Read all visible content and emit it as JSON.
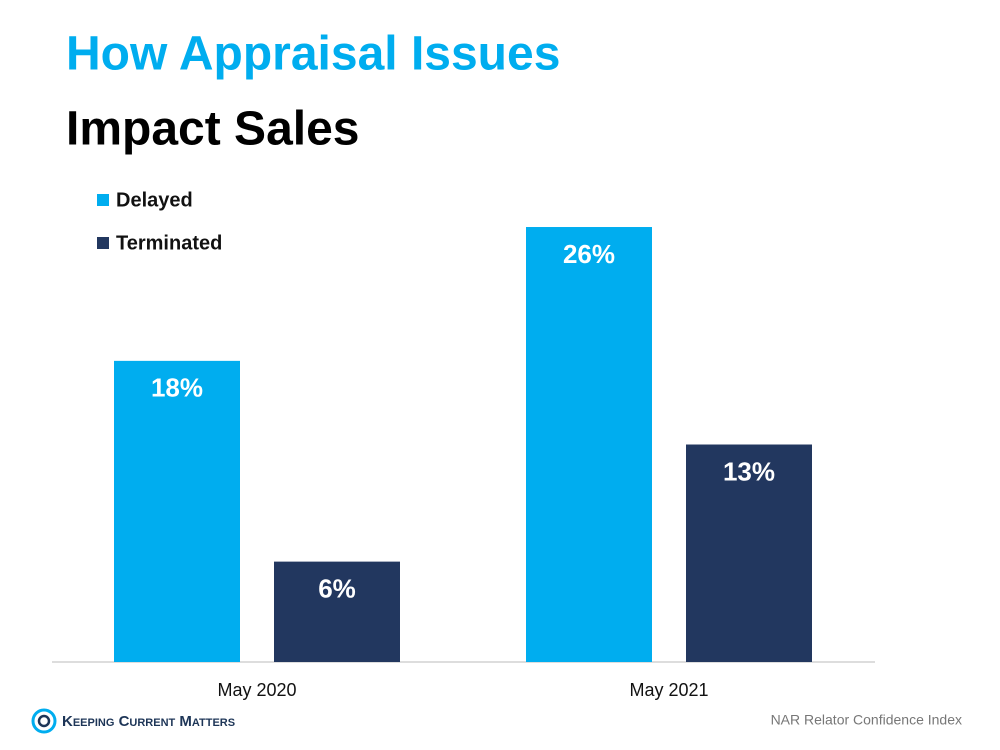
{
  "chart_data": {
    "type": "bar",
    "title": [
      "How Appraisal Issues",
      "Impact Sales"
    ],
    "categories": [
      "May 2020",
      "May 2021"
    ],
    "series": [
      {
        "name": "Delayed",
        "color": "#00adef",
        "values": [
          18,
          26
        ],
        "value_labels": [
          "18%",
          "26%"
        ]
      },
      {
        "name": "Terminated",
        "color": "#22375f",
        "values": [
          6,
          13
        ],
        "value_labels": [
          "6%",
          "13%"
        ]
      }
    ],
    "logo": "Keeping Current Matters",
    "source": "NAR Relator Confidence Index"
  }
}
